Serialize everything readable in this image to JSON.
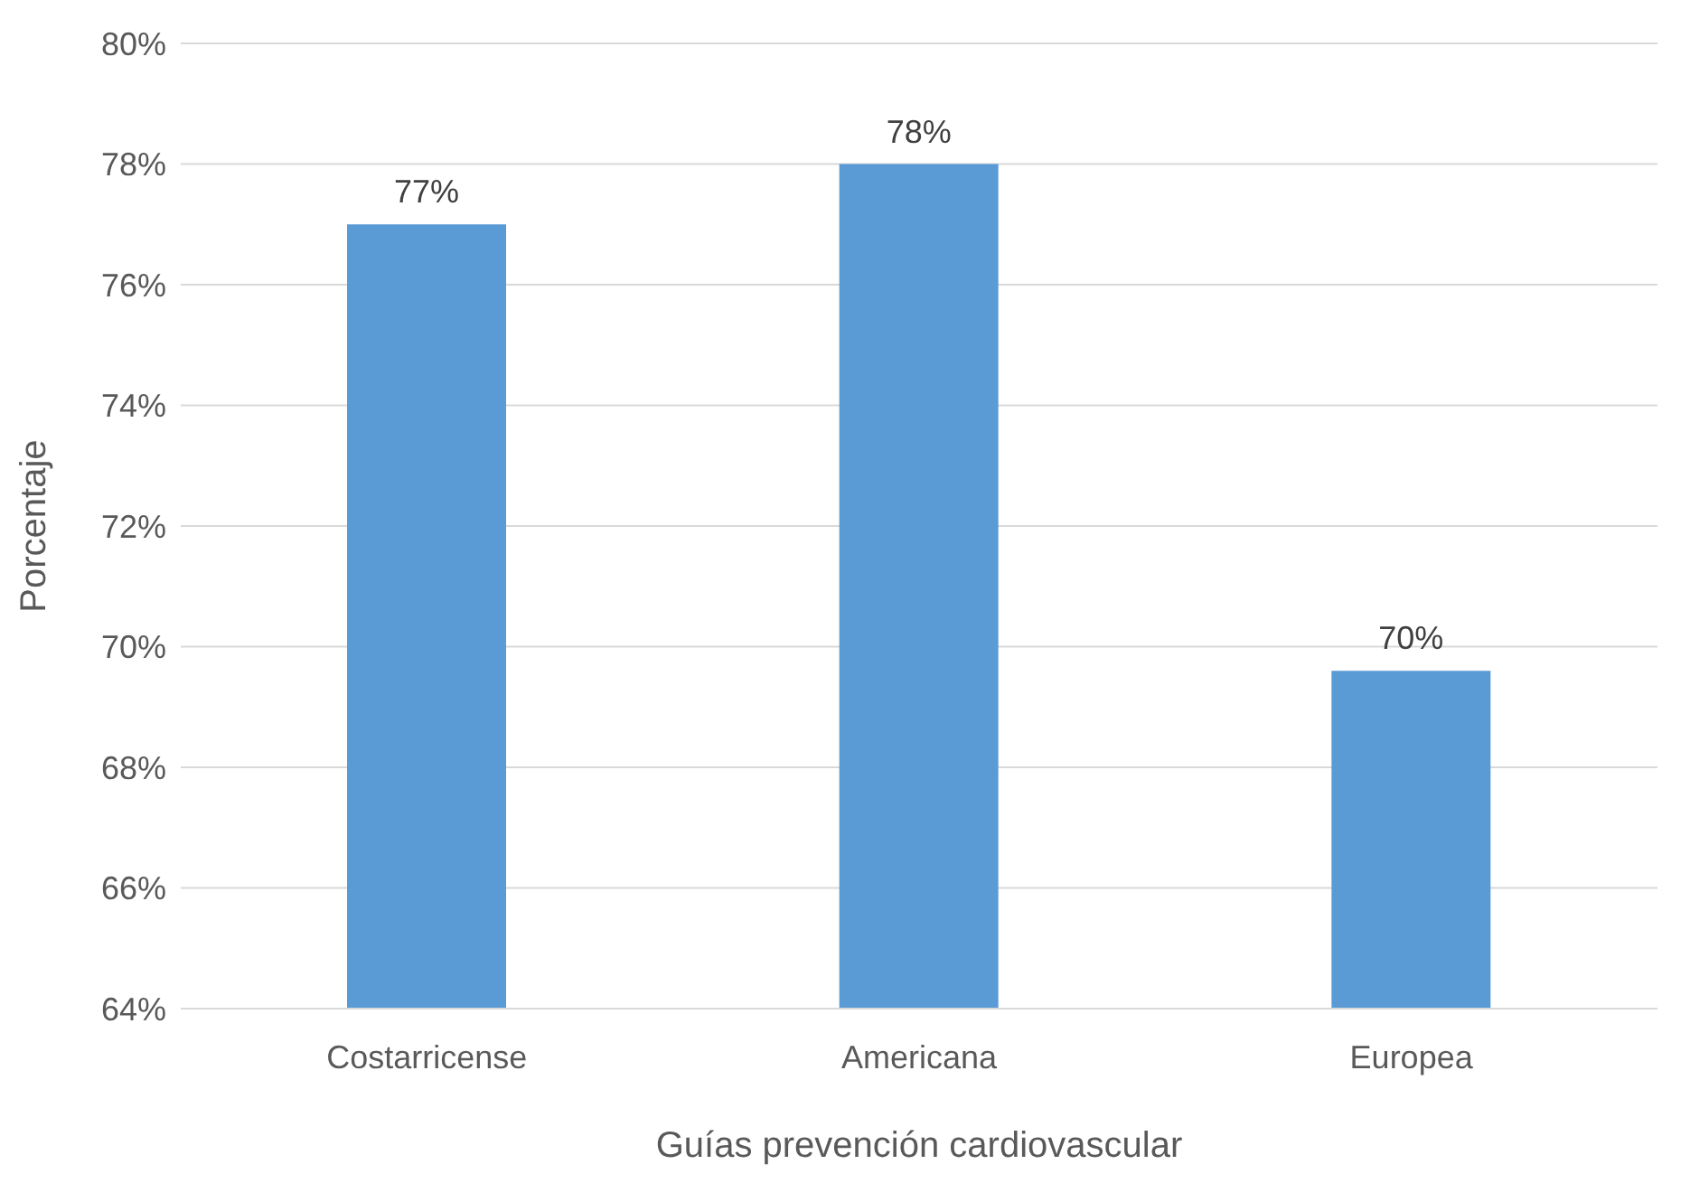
{
  "chart_data": {
    "type": "bar",
    "xlabel": "Guías prevención cardiovascular",
    "ylabel": "Porcentaje",
    "categories": [
      "Costarricense",
      "Americana",
      "Europea"
    ],
    "values": [
      77.0,
      78.0,
      69.6
    ],
    "value_labels": [
      "77%",
      "78%",
      "70%"
    ],
    "color": "#5b9bd5",
    "ylim": [
      64,
      80
    ],
    "yticks": [
      {
        "value": 64,
        "label": "64%"
      },
      {
        "value": 66,
        "label": "66%"
      },
      {
        "value": 68,
        "label": "68%"
      },
      {
        "value": 70,
        "label": "70%"
      },
      {
        "value": 72,
        "label": "72%"
      },
      {
        "value": 74,
        "label": "74%"
      },
      {
        "value": 76,
        "label": "76%"
      },
      {
        "value": 78,
        "label": "78%"
      },
      {
        "value": 80,
        "label": "80%"
      }
    ],
    "grid": "y"
  }
}
